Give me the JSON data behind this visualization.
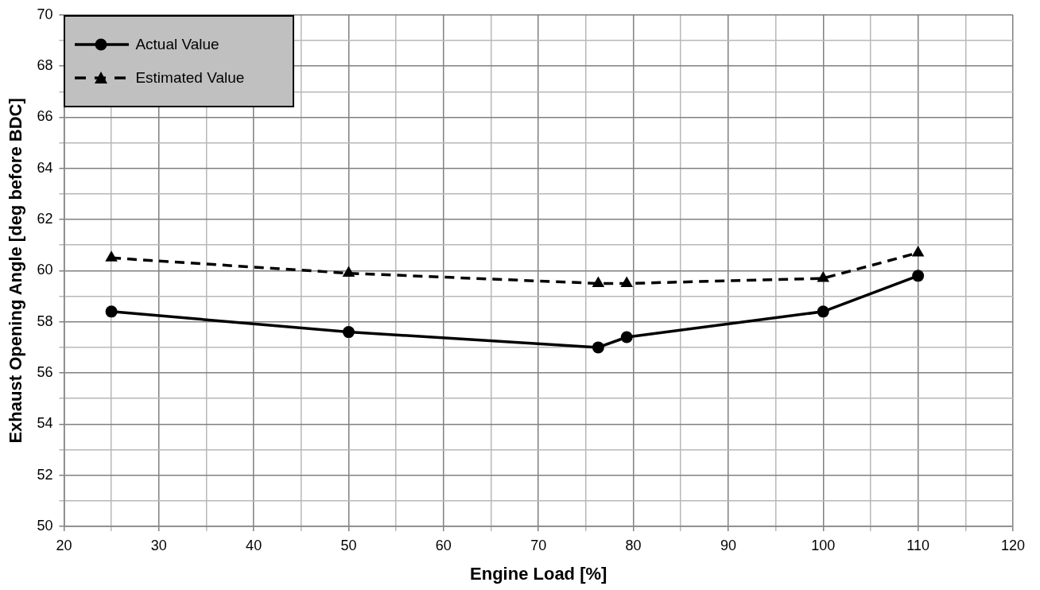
{
  "chart_data": {
    "type": "line",
    "xlabel": "Engine Load [%]",
    "ylabel": "Exhaust Opening Angle [deg before BDC]",
    "xlim": [
      20,
      120
    ],
    "xticks": [
      20,
      {
        "value": 25,
        "label": null
      },
      30,
      {
        "value": 35,
        "label": null
      },
      40,
      {
        "value": 45,
        "label": null
      },
      50,
      {
        "value": 55,
        "label": null
      },
      60,
      {
        "value": 65,
        "label": null
      },
      70,
      {
        "value": 75,
        "label": null
      },
      80,
      {
        "value": 85,
        "label": null
      },
      90,
      {
        "value": 95,
        "label": null
      },
      100,
      {
        "value": 105,
        "label": null
      },
      110,
      {
        "value": 115,
        "label": null
      },
      120
    ],
    "ylim": [
      50,
      70
    ],
    "yticks": [
      50,
      {
        "value": 51,
        "label": null
      },
      52,
      {
        "value": 53,
        "label": null
      },
      54,
      {
        "value": 55,
        "label": null
      },
      56,
      {
        "value": 57,
        "label": null
      },
      58,
      {
        "value": 59,
        "label": null
      },
      60,
      {
        "value": 61,
        "label": null
      },
      62,
      {
        "value": 63,
        "label": null
      },
      64,
      {
        "value": 65,
        "label": null
      },
      66,
      {
        "value": 67,
        "label": null
      },
      68,
      {
        "value": 69,
        "label": null
      },
      70
    ],
    "grid": true,
    "legend": "top left",
    "series": [
      {
        "name": "Actual Value",
        "color": "#000000",
        "marker": "circle",
        "line_style": "solid",
        "x": [
          25,
          50,
          76.3,
          79.3,
          100,
          110
        ],
        "values": [
          58.4,
          57.6,
          57.0,
          57.4,
          58.4,
          59.8
        ]
      },
      {
        "name": "Estimated Value",
        "color": "#000000",
        "marker": "triangle",
        "line_style": "dashed",
        "x": [
          25,
          50,
          76.3,
          79.3,
          100,
          110
        ],
        "values": [
          60.5,
          59.9,
          59.5,
          59.5,
          59.7,
          60.7
        ]
      }
    ]
  }
}
